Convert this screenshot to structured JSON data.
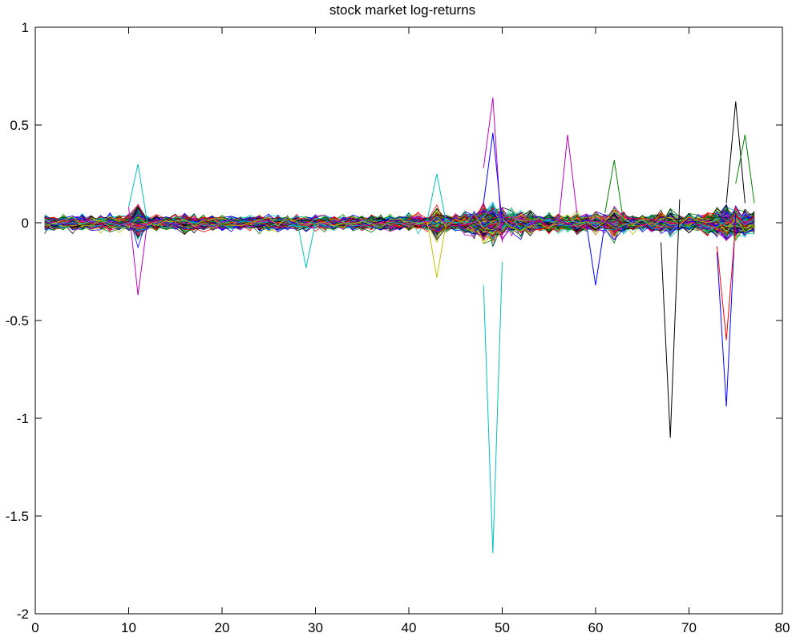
{
  "chart_data": {
    "type": "line",
    "title": "stock market log-returns",
    "xlabel": "",
    "ylabel": "",
    "xlim": [
      0,
      80
    ],
    "ylim": [
      -2,
      1
    ],
    "x_ticks": [
      0,
      10,
      20,
      30,
      40,
      50,
      60,
      70,
      80
    ],
    "y_ticks": [
      -2,
      -1.5,
      -1,
      -0.5,
      0,
      0.5,
      1
    ],
    "x_tick_labels": [
      "0",
      "10",
      "20",
      "30",
      "40",
      "50",
      "60",
      "70",
      "80"
    ],
    "y_tick_labels": [
      "-2",
      "-1.5",
      "-1",
      "-0.5",
      "0",
      "0.5",
      "1"
    ],
    "grid": false,
    "legend": "none",
    "x_range_of_series": [
      1,
      77
    ],
    "n_series_approx": 300,
    "line_colors": [
      "#0000ff",
      "#008000",
      "#ff0000",
      "#00bfbf",
      "#bf00bf",
      "#bfbf00",
      "#000000"
    ],
    "notable_series": [
      {
        "color": "#00bfbf",
        "points": [
          [
            48,
            -0.32
          ],
          [
            49,
            -1.69
          ],
          [
            50,
            -0.2
          ]
        ]
      },
      {
        "color": "#bf00bf",
        "points": [
          [
            48,
            0.28
          ],
          [
            49,
            0.64
          ],
          [
            50,
            -0.1
          ]
        ]
      },
      {
        "color": "#0000ff",
        "points": [
          [
            48,
            0.1
          ],
          [
            49,
            0.46
          ],
          [
            50,
            0.0
          ]
        ]
      },
      {
        "color": "#000000",
        "points": [
          [
            67,
            -0.1
          ],
          [
            68,
            -1.1
          ],
          [
            69,
            0.12
          ]
        ]
      },
      {
        "color": "#0000ff",
        "points": [
          [
            73,
            -0.15
          ],
          [
            74,
            -0.94
          ],
          [
            75,
            0.05
          ]
        ]
      },
      {
        "color": "#000000",
        "points": [
          [
            74,
            0.1
          ],
          [
            75,
            0.62
          ],
          [
            76,
            0.1
          ]
        ]
      },
      {
        "color": "#ff0000",
        "points": [
          [
            73,
            -0.12
          ],
          [
            74,
            -0.6
          ],
          [
            75,
            0.0
          ]
        ]
      },
      {
        "color": "#bf00bf",
        "points": [
          [
            10,
            0.08
          ],
          [
            11,
            -0.37
          ],
          [
            12,
            0.0
          ]
        ]
      },
      {
        "color": "#00bfbf",
        "points": [
          [
            10,
            0.08
          ],
          [
            11,
            0.3
          ],
          [
            12,
            0.0
          ]
        ]
      },
      {
        "color": "#bf00bf",
        "points": [
          [
            56,
            -0.02
          ],
          [
            57,
            0.45
          ],
          [
            58,
            0.05
          ]
        ]
      },
      {
        "color": "#008000",
        "points": [
          [
            75,
            0.2
          ],
          [
            76,
            0.45
          ],
          [
            77,
            0.1
          ]
        ]
      },
      {
        "color": "#00bfbf",
        "points": [
          [
            28,
            0.02
          ],
          [
            29,
            -0.23
          ],
          [
            30,
            0.0
          ]
        ]
      },
      {
        "color": "#00bfbf",
        "points": [
          [
            42,
            0.02
          ],
          [
            43,
            0.25
          ],
          [
            44,
            0.0
          ]
        ]
      },
      {
        "color": "#bfbf00",
        "points": [
          [
            42,
            0.0
          ],
          [
            43,
            -0.28
          ],
          [
            44,
            0.0
          ]
        ]
      },
      {
        "color": "#008000",
        "points": [
          [
            61,
            0.05
          ],
          [
            62,
            0.32
          ],
          [
            63,
            0.0
          ]
        ]
      },
      {
        "color": "#0000ff",
        "points": [
          [
            59,
            0.0
          ],
          [
            60,
            -0.32
          ],
          [
            61,
            0.0
          ]
        ]
      }
    ]
  }
}
